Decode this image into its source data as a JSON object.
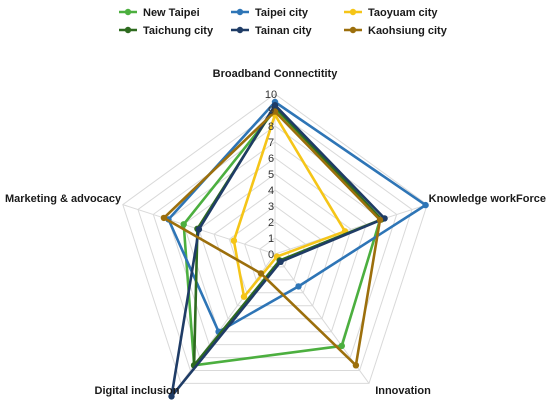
{
  "chart_data": {
    "type": "radar",
    "axes": [
      "Broadband Connectitity",
      "Knowledge workForce",
      "Innovation",
      "Digital inclusion",
      "Marketing & advocacy"
    ],
    "ticks": [
      "0",
      "1",
      "2",
      "3",
      "4",
      "5",
      "6",
      "7",
      "8",
      "9",
      "10"
    ],
    "rmax": 10,
    "grid": true,
    "legend_position": "top",
    "series": [
      {
        "name": "New Taipei",
        "color": "#4caf3f",
        "values": [
          9.0,
          6.9,
          7.1,
          8.6,
          6.0
        ]
      },
      {
        "name": "Taipei city",
        "color": "#2e75b6",
        "values": [
          9.5,
          9.9,
          2.5,
          6.0,
          7.0
        ]
      },
      {
        "name": "Taoyuam city",
        "color": "#f5c518",
        "values": [
          8.7,
          4.6,
          0.2,
          3.3,
          2.7
        ]
      },
      {
        "name": "Taichung city",
        "color": "#2e6b1f",
        "values": [
          9.2,
          7.0,
          0.5,
          8.6,
          5.1
        ]
      },
      {
        "name": "Tainan city",
        "color": "#1f3c66",
        "values": [
          9.3,
          7.2,
          0.6,
          11.0,
          5.0
        ]
      },
      {
        "name": "Kaohsiung city",
        "color": "#9c6f0c",
        "values": [
          8.9,
          6.9,
          8.6,
          1.5,
          7.3
        ]
      }
    ]
  }
}
